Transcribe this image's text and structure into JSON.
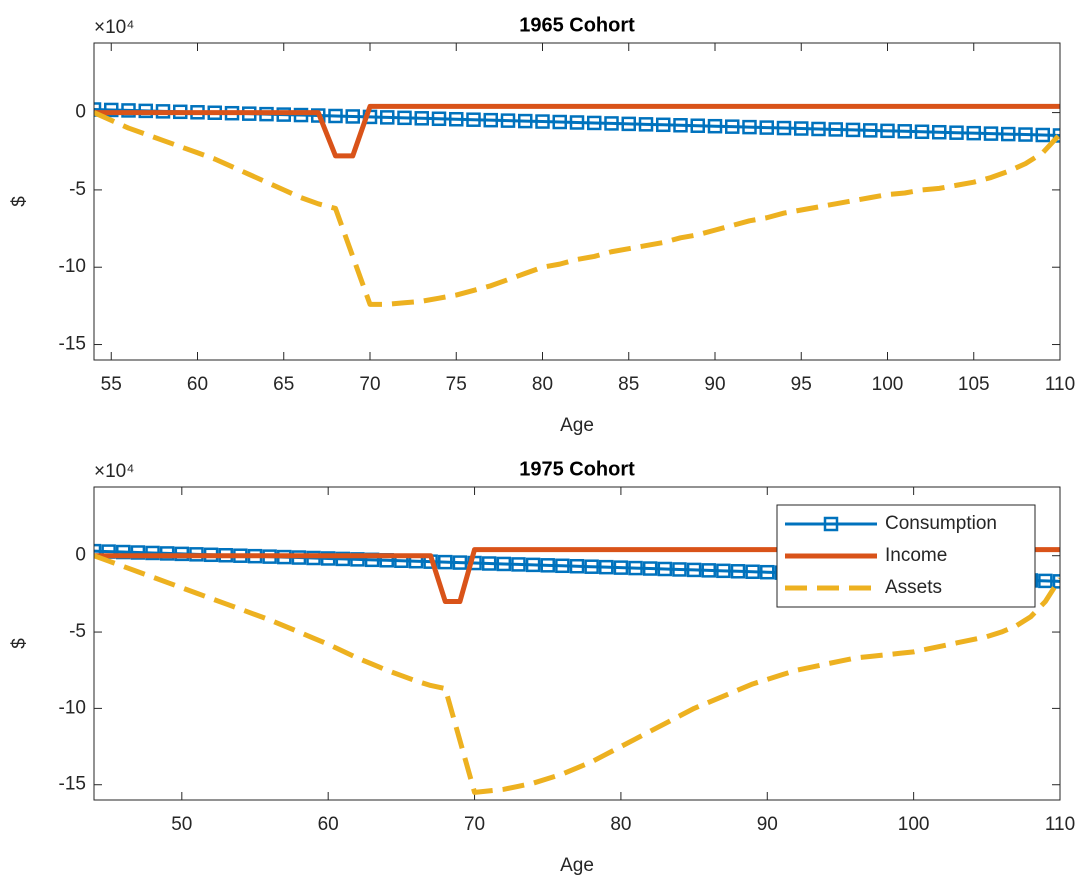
{
  "chart_data": [
    {
      "type": "line",
      "title": "1965 Cohort",
      "xlabel": "Age",
      "ylabel": "$",
      "y_exponent": "×10⁴",
      "xlim": [
        54,
        110
      ],
      "xticks": [
        55,
        60,
        65,
        70,
        75,
        80,
        85,
        90,
        95,
        100,
        105,
        110
      ],
      "ylim": [
        -16,
        4.5
      ],
      "yticks": [
        -15,
        -10,
        -5,
        0
      ],
      "x": [
        54,
        55,
        56,
        57,
        58,
        59,
        60,
        61,
        62,
        63,
        64,
        65,
        66,
        67,
        68,
        69,
        70,
        71,
        72,
        73,
        74,
        75,
        76,
        77,
        78,
        79,
        80,
        81,
        82,
        83,
        84,
        85,
        86,
        87,
        88,
        89,
        90,
        91,
        92,
        93,
        94,
        95,
        96,
        97,
        98,
        99,
        100,
        101,
        102,
        103,
        104,
        105,
        106,
        107,
        108,
        109,
        110
      ],
      "series": [
        {
          "name": "Consumption",
          "color": "#0072bd",
          "line_style": "solid",
          "marker": "square",
          "values": [
            0.2,
            0.17,
            0.14,
            0.11,
            0.08,
            0.05,
            0.02,
            -0.01,
            -0.04,
            -0.07,
            -0.1,
            -0.13,
            -0.16,
            -0.19,
            -0.22,
            -0.25,
            -0.28,
            -0.31,
            -0.34,
            -0.37,
            -0.4,
            -0.43,
            -0.46,
            -0.49,
            -0.52,
            -0.55,
            -0.58,
            -0.61,
            -0.64,
            -0.67,
            -0.7,
            -0.73,
            -0.76,
            -0.79,
            -0.82,
            -0.85,
            -0.88,
            -0.91,
            -0.94,
            -0.97,
            -1.0,
            -1.03,
            -1.06,
            -1.09,
            -1.12,
            -1.15,
            -1.18,
            -1.21,
            -1.24,
            -1.27,
            -1.3,
            -1.33,
            -1.36,
            -1.39,
            -1.42,
            -1.45,
            -1.48
          ]
        },
        {
          "name": "Income",
          "color": "#d95319",
          "line_style": "solid",
          "values": [
            0,
            0,
            0,
            0,
            0,
            0,
            0,
            0,
            0,
            0,
            0,
            0,
            0,
            0,
            -2.8,
            -2.8,
            0.4,
            0.4,
            0.4,
            0.4,
            0.4,
            0.4,
            0.4,
            0.4,
            0.4,
            0.4,
            0.4,
            0.4,
            0.4,
            0.4,
            0.4,
            0.4,
            0.4,
            0.4,
            0.4,
            0.4,
            0.4,
            0.4,
            0.4,
            0.4,
            0.4,
            0.4,
            0.4,
            0.4,
            0.4,
            0.4,
            0.4,
            0.4,
            0.4,
            0.4,
            0.4,
            0.4,
            0.4,
            0.4,
            0.4,
            0.4,
            0.4
          ]
        },
        {
          "name": "Assets",
          "color": "#edb120",
          "line_style": "dashed",
          "values": [
            0,
            -0.5,
            -1,
            -1.4,
            -1.8,
            -2.2,
            -2.6,
            -3.0,
            -3.5,
            -4.0,
            -4.5,
            -5.0,
            -5.5,
            -5.9,
            -6.2,
            -9.3,
            -12.4,
            -12.4,
            -12.3,
            -12.2,
            -12.0,
            -11.8,
            -11.5,
            -11.2,
            -10.8,
            -10.4,
            -10.0,
            -9.8,
            -9.5,
            -9.3,
            -9.0,
            -8.8,
            -8.6,
            -8.4,
            -8.1,
            -7.9,
            -7.6,
            -7.3,
            -7.0,
            -6.8,
            -6.5,
            -6.3,
            -6.1,
            -5.9,
            -5.7,
            -5.5,
            -5.3,
            -5.2,
            -5.0,
            -4.9,
            -4.7,
            -4.5,
            -4.2,
            -3.8,
            -3.3,
            -2.6,
            -1.4
          ]
        }
      ]
    },
    {
      "type": "line",
      "title": "1975 Cohort",
      "xlabel": "Age",
      "ylabel": "$",
      "y_exponent": "×10⁴",
      "xlim": [
        44,
        110
      ],
      "xticks": [
        50,
        60,
        70,
        80,
        90,
        100,
        110
      ],
      "ylim": [
        -16,
        4.5
      ],
      "yticks": [
        -15,
        -10,
        -5,
        0
      ],
      "legend": "northeast",
      "x": [
        44,
        45,
        46,
        47,
        48,
        49,
        50,
        51,
        52,
        53,
        54,
        55,
        56,
        57,
        58,
        59,
        60,
        61,
        62,
        63,
        64,
        65,
        66,
        67,
        68,
        69,
        70,
        71,
        72,
        73,
        74,
        75,
        76,
        77,
        78,
        79,
        80,
        81,
        82,
        83,
        84,
        85,
        86,
        87,
        88,
        89,
        90,
        91,
        92,
        93,
        94,
        95,
        96,
        97,
        98,
        99,
        100,
        101,
        102,
        103,
        104,
        105,
        106,
        107,
        108,
        109,
        110
      ],
      "series": [
        {
          "name": "Consumption",
          "color": "#0072bd",
          "line_style": "solid",
          "marker": "square",
          "values": [
            0.3,
            0.27,
            0.24,
            0.21,
            0.18,
            0.15,
            0.12,
            0.09,
            0.06,
            0.03,
            0,
            -0.03,
            -0.06,
            -0.09,
            -0.12,
            -0.15,
            -0.18,
            -0.21,
            -0.24,
            -0.27,
            -0.3,
            -0.33,
            -0.36,
            -0.39,
            -0.42,
            -0.45,
            -0.48,
            -0.51,
            -0.54,
            -0.57,
            -0.6,
            -0.63,
            -0.66,
            -0.69,
            -0.72,
            -0.75,
            -0.78,
            -0.81,
            -0.84,
            -0.87,
            -0.9,
            -0.93,
            -0.96,
            -0.99,
            -1.02,
            -1.05,
            -1.08,
            -1.11,
            -1.14,
            -1.17,
            -1.2,
            -1.23,
            -1.26,
            -1.29,
            -1.32,
            -1.35,
            -1.38,
            -1.41,
            -1.44,
            -1.47,
            -1.5,
            -1.53,
            -1.56,
            -1.59,
            -1.62,
            -1.65,
            -1.68
          ]
        },
        {
          "name": "Income",
          "color": "#d95319",
          "line_style": "solid",
          "values": [
            0,
            0,
            0,
            0,
            0,
            0,
            0,
            0,
            0,
            0,
            0,
            0,
            0,
            0,
            0,
            0,
            0,
            0,
            0,
            0,
            0,
            0,
            0,
            0,
            -3.0,
            -3.0,
            0.4,
            0.4,
            0.4,
            0.4,
            0.4,
            0.4,
            0.4,
            0.4,
            0.4,
            0.4,
            0.4,
            0.4,
            0.4,
            0.4,
            0.4,
            0.4,
            0.4,
            0.4,
            0.4,
            0.4,
            0.4,
            0.4,
            0.4,
            0.4,
            0.4,
            0.4,
            0.4,
            0.4,
            0.4,
            0.4,
            0.4,
            0.4,
            0.4,
            0.4,
            0.4,
            0.4,
            0.4,
            0.4,
            0.4,
            0.4,
            0.4
          ]
        },
        {
          "name": "Assets",
          "color": "#edb120",
          "line_style": "dashed",
          "values": [
            0,
            -0.35,
            -0.7,
            -1.05,
            -1.4,
            -1.75,
            -2.1,
            -2.45,
            -2.8,
            -3.15,
            -3.5,
            -3.85,
            -4.2,
            -4.6,
            -5.0,
            -5.4,
            -5.8,
            -6.25,
            -6.7,
            -7.1,
            -7.5,
            -7.85,
            -8.2,
            -8.5,
            -8.7,
            -12.1,
            -15.5,
            -15.4,
            -15.3,
            -15.1,
            -14.9,
            -14.6,
            -14.3,
            -13.9,
            -13.5,
            -13.0,
            -12.5,
            -12.0,
            -11.5,
            -11.0,
            -10.5,
            -10.0,
            -9.6,
            -9.2,
            -8.8,
            -8.4,
            -8.1,
            -7.8,
            -7.5,
            -7.3,
            -7.1,
            -6.9,
            -6.7,
            -6.6,
            -6.5,
            -6.4,
            -6.3,
            -6.1,
            -5.9,
            -5.7,
            -5.5,
            -5.3,
            -5.0,
            -4.6,
            -4.0,
            -3.0,
            -1.5
          ]
        }
      ]
    }
  ]
}
